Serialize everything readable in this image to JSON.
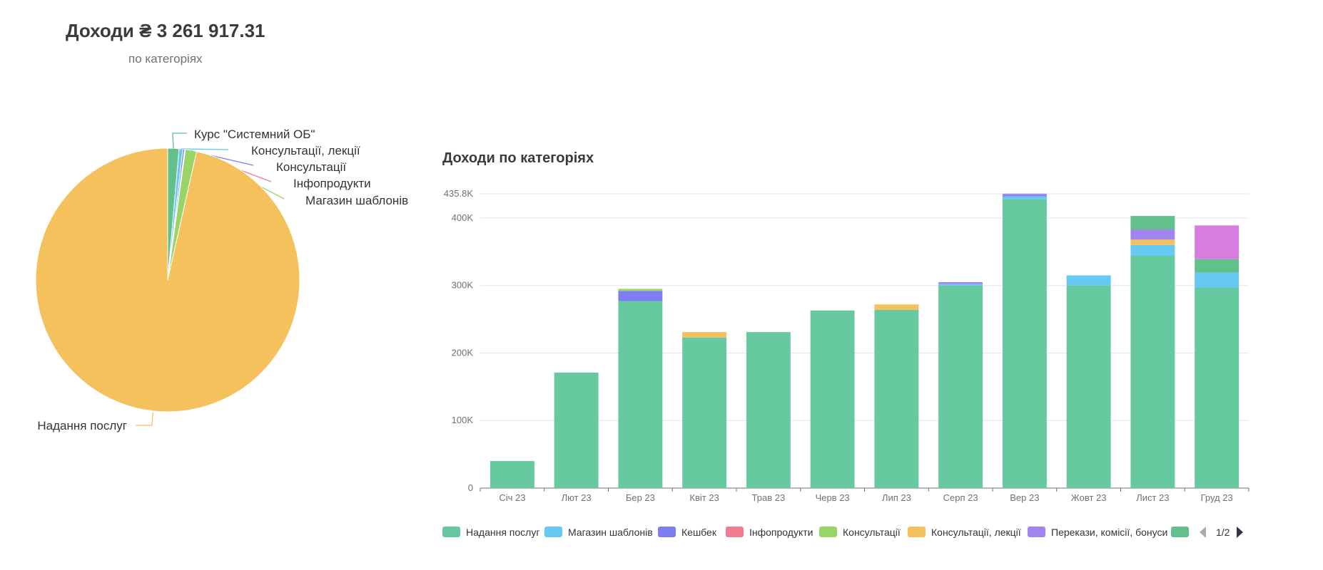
{
  "header": {
    "title": "Доходи ₴ 3 261 917.31",
    "subtitle": "по категоріях"
  },
  "colors": {
    "Надання послуг": "#66c9a0",
    "Магазин шаблонів": "#67c8f3",
    "Кешбек": "#7b7df0",
    "Інфопродукти": "#f07b8d",
    "Консультації": "#99d566",
    "Консультації, лекції": "#f4c15c",
    "Перекази, комісії, бонуси": "#a185ee",
    "Курс \"Системний ОБ\"": "#62c18a",
    "Other": "#d67ddf",
    "pie_main": "#f4c15c"
  },
  "chart_data": [
    {
      "type": "pie",
      "slices": [
        {
          "name": "Курс \"Системний ОБ\"",
          "value": 45000,
          "color": "#62c18a"
        },
        {
          "name": "Консультації, лекції",
          "value": 15000,
          "color": "#67c8f3"
        },
        {
          "name": "Консультації",
          "value": 7000,
          "color": "#7b7df0"
        },
        {
          "name": "Інфопродукти",
          "value": 3000,
          "color": "#f07b8d"
        },
        {
          "name": "Магазин шаблонів",
          "value": 45000,
          "color": "#99d566"
        },
        {
          "name": "Надання послуг",
          "value": 3146917.31,
          "color": "#f4c15c"
        }
      ]
    },
    {
      "type": "bar",
      "stacked": true,
      "title": "Доходи по категоріях",
      "categories": [
        "Січ 23",
        "Лют 23",
        "Бер 23",
        "Квіт 23",
        "Трав 23",
        "Черв 23",
        "Лип 23",
        "Серп 23",
        "Вер 23",
        "Жовт 23",
        "Лист 23",
        "Груд 23"
      ],
      "ylim": [
        0,
        435800
      ],
      "y_ticks": [
        "0",
        "100K",
        "200K",
        "300K",
        "400K",
        "435.8K"
      ],
      "y_tick_values": [
        0,
        100000,
        200000,
        300000,
        400000,
        435800
      ],
      "series": [
        {
          "name": "Надання послуг",
          "color": "#66c9a0",
          "values": [
            40000,
            171000,
            277000,
            223000,
            231000,
            263000,
            264000,
            300000,
            428000,
            300000,
            344000,
            297000
          ]
        },
        {
          "name": "Магазин шаблонів",
          "color": "#67c8f3",
          "values": [
            0,
            0,
            0,
            0,
            0,
            0,
            0,
            2000,
            4000,
            15000,
            16000,
            22000
          ]
        },
        {
          "name": "Кешбек",
          "color": "#7b7df0",
          "values": [
            0,
            0,
            15000,
            0,
            0,
            0,
            0,
            0,
            2000,
            0,
            0,
            0
          ]
        },
        {
          "name": "Інфопродукти",
          "color": "#f07b8d",
          "values": [
            0,
            0,
            0,
            0,
            0,
            0,
            0,
            0,
            0,
            0,
            0,
            0
          ]
        },
        {
          "name": "Консультації",
          "color": "#99d566",
          "values": [
            0,
            0,
            3000,
            0,
            0,
            0,
            0,
            0,
            0,
            0,
            0,
            0
          ]
        },
        {
          "name": "Консультації, лекції",
          "color": "#f4c15c",
          "values": [
            0,
            0,
            0,
            8000,
            0,
            0,
            8000,
            0,
            0,
            0,
            8000,
            0
          ]
        },
        {
          "name": "Перекази, комісії, бонуси",
          "color": "#a185ee",
          "values": [
            0,
            0,
            0,
            0,
            0,
            0,
            0,
            3000,
            2000,
            0,
            15000,
            0
          ]
        },
        {
          "name": "",
          "color": "#62c18a",
          "values": [
            0,
            0,
            0,
            0,
            0,
            0,
            0,
            0,
            0,
            0,
            20000,
            20000
          ]
        },
        {
          "name": "",
          "color": "#d67ddf",
          "values": [
            0,
            0,
            0,
            0,
            0,
            0,
            0,
            0,
            0,
            0,
            0,
            50000
          ]
        }
      ],
      "legend": {
        "items": [
          "Надання послуг",
          "Магазин шаблонів",
          "Кешбек",
          "Інфопродукти",
          "Консультації",
          "Консультації, лекції",
          "Перекази, комісії, бонуси",
          ""
        ],
        "colors": [
          "#66c9a0",
          "#67c8f3",
          "#7b7df0",
          "#f07b8d",
          "#99d566",
          "#f4c15c",
          "#a185ee",
          "#62c18a"
        ],
        "page": "1/2"
      }
    }
  ]
}
